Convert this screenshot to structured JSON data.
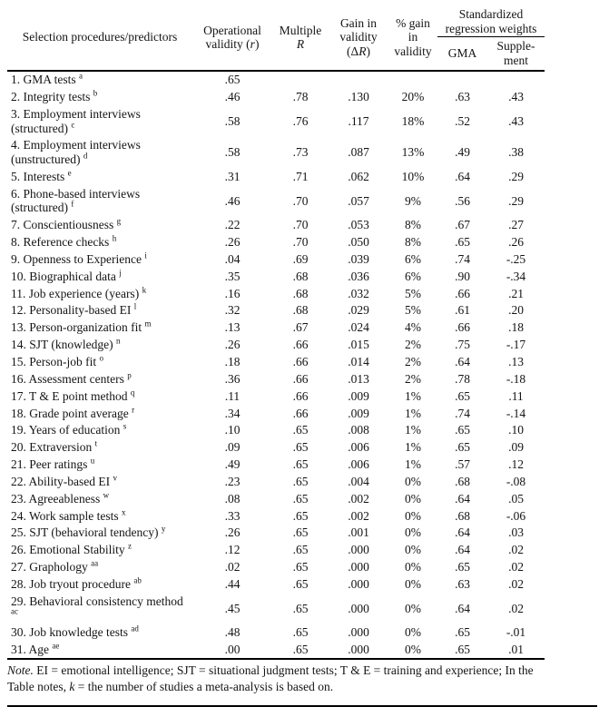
{
  "page": {
    "table": {
      "header": {
        "col1": [
          {
            "t": "Selection procedures/predictors"
          }
        ],
        "col2": [
          {
            "t": "Operational"
          },
          {
            "br": true
          },
          {
            "t": "validity ("
          },
          {
            "t": "r",
            "i": true
          },
          {
            "t": ")"
          }
        ],
        "col3": [
          {
            "t": "Multiple"
          },
          {
            "br": true
          },
          {
            "t": "R",
            "i": true
          }
        ],
        "col4": [
          {
            "t": "Gain in"
          },
          {
            "br": true
          },
          {
            "t": "validity"
          },
          {
            "br": true
          },
          {
            "t": "(Δ"
          },
          {
            "t": "R",
            "i": true
          },
          {
            "t": ")"
          }
        ],
        "col5": [
          {
            "t": "% gain"
          },
          {
            "br": true
          },
          {
            "t": "in"
          },
          {
            "br": true
          },
          {
            "t": "validity"
          }
        ],
        "group": [
          {
            "t": "Standardized"
          },
          {
            "br": true
          },
          {
            "t": "regression weights"
          }
        ],
        "col6": [
          {
            "t": "GMA"
          }
        ],
        "col7": [
          {
            "t": "Supple-"
          },
          {
            "br": true
          },
          {
            "t": "ment"
          }
        ]
      },
      "rows": [
        {
          "label": "1. GMA tests",
          "sup": "a",
          "v": [
            ".65",
            "",
            "",
            "",
            "",
            ""
          ]
        },
        {
          "label": "2. Integrity tests",
          "sup": "b",
          "v": [
            ".46",
            ".78",
            ".130",
            "20%",
            ".63",
            ".43"
          ]
        },
        {
          "label": "3. Employment interviews (structured)",
          "sup": "c",
          "v": [
            ".58",
            ".76",
            ".117",
            "18%",
            ".52",
            ".43"
          ]
        },
        {
          "label": "4. Employment interviews (unstructured)",
          "sup": "d",
          "v": [
            ".58",
            ".73",
            ".087",
            "13%",
            ".49",
            ".38"
          ]
        },
        {
          "label": "5. Interests",
          "sup": "e",
          "v": [
            ".31",
            ".71",
            ".062",
            "10%",
            ".64",
            ".29"
          ]
        },
        {
          "label": "6. Phone-based interviews (structured)",
          "sup": "f",
          "v": [
            ".46",
            ".70",
            ".057",
            "9%",
            ".56",
            ".29"
          ]
        },
        {
          "label": "7. Conscientiousness",
          "sup": "g",
          "v": [
            ".22",
            ".70",
            ".053",
            "8%",
            ".67",
            ".27"
          ]
        },
        {
          "label": "8. Reference checks",
          "sup": "h",
          "v": [
            ".26",
            ".70",
            ".050",
            "8%",
            ".65",
            ".26"
          ]
        },
        {
          "label": "9. Openness to Experience",
          "sup": "i",
          "v": [
            ".04",
            ".69",
            ".039",
            "6%",
            ".74",
            "-.25"
          ]
        },
        {
          "label": "10. Biographical data",
          "sup": "j",
          "v": [
            ".35",
            ".68",
            ".036",
            "6%",
            ".90",
            "-.34"
          ]
        },
        {
          "label": "11. Job experience (years)",
          "sup": "k",
          "v": [
            ".16",
            ".68",
            ".032",
            "5%",
            ".66",
            ".21"
          ]
        },
        {
          "label": "12. Personality-based EI",
          "sup": "l",
          "v": [
            ".32",
            ".68",
            ".029",
            "5%",
            ".61",
            ".20"
          ]
        },
        {
          "label": "13. Person-organization fit",
          "sup": "m",
          "v": [
            ".13",
            ".67",
            ".024",
            "4%",
            ".66",
            ".18"
          ]
        },
        {
          "label": "14. SJT (knowledge)",
          "sup": "n",
          "v": [
            ".26",
            ".66",
            ".015",
            "2%",
            ".75",
            "-.17"
          ]
        },
        {
          "label": "15. Person-job fit",
          "sup": "o",
          "v": [
            ".18",
            ".66",
            ".014",
            "2%",
            ".64",
            ".13"
          ]
        },
        {
          "label": "16. Assessment centers",
          "sup": "p",
          "v": [
            ".36",
            ".66",
            ".013",
            "2%",
            ".78",
            "-.18"
          ]
        },
        {
          "label": "17. T & E point method",
          "sup": "q",
          "v": [
            ".11",
            ".66",
            ".009",
            "1%",
            ".65",
            ".11"
          ]
        },
        {
          "label": "18. Grade point average",
          "sup": "r",
          "v": [
            ".34",
            ".66",
            ".009",
            "1%",
            ".74",
            "-.14"
          ]
        },
        {
          "label": "19. Years of education",
          "sup": "s",
          "v": [
            ".10",
            ".65",
            ".008",
            "1%",
            ".65",
            ".10"
          ]
        },
        {
          "label": "20. Extraversion",
          "sup": "t",
          "v": [
            ".09",
            ".65",
            ".006",
            "1%",
            ".65",
            ".09"
          ]
        },
        {
          "label": "21. Peer ratings",
          "sup": "u",
          "v": [
            ".49",
            ".65",
            ".006",
            "1%",
            ".57",
            ".12"
          ]
        },
        {
          "label": "22. Ability-based EI",
          "sup": "v",
          "v": [
            ".23",
            ".65",
            ".004",
            "0%",
            ".68",
            "-.08"
          ]
        },
        {
          "label": "23. Agreeableness",
          "sup": "w",
          "v": [
            ".08",
            ".65",
            ".002",
            "0%",
            ".64",
            ".05"
          ]
        },
        {
          "label": "24. Work sample tests",
          "sup": "x",
          "v": [
            ".33",
            ".65",
            ".002",
            "0%",
            ".68",
            "-.06"
          ]
        },
        {
          "label": "25. SJT (behavioral tendency)",
          "sup": "y",
          "v": [
            ".26",
            ".65",
            ".001",
            "0%",
            ".64",
            ".03"
          ]
        },
        {
          "label": "26. Emotional Stability",
          "sup": "z",
          "v": [
            ".12",
            ".65",
            ".000",
            "0%",
            ".64",
            ".02"
          ]
        },
        {
          "label": "27. Graphology",
          "sup": "aa",
          "v": [
            ".02",
            ".65",
            ".000",
            "0%",
            ".65",
            ".02"
          ]
        },
        {
          "label": "28. Job tryout procedure",
          "sup": "ab",
          "v": [
            ".44",
            ".65",
            ".000",
            "0%",
            ".63",
            ".02"
          ]
        },
        {
          "label": "29. Behavioral consistency method",
          "sup": "ac",
          "v": [
            ".45",
            ".65",
            ".000",
            "0%",
            ".64",
            ".02"
          ]
        },
        {
          "label": "30. Job knowledge tests",
          "sup": "ad",
          "v": [
            ".48",
            ".65",
            ".000",
            "0%",
            ".65",
            "-.01"
          ]
        },
        {
          "label": "31. Age",
          "sup": "ae",
          "v": [
            ".00",
            ".65",
            ".000",
            "0%",
            ".65",
            ".01"
          ]
        }
      ]
    },
    "note": [
      {
        "t": "Note.",
        "i": true
      },
      {
        "t": " EI = emotional intelligence; SJT = situational judgment tests; T & E = training and experience; In the Table notes, "
      },
      {
        "t": "k",
        "i": true
      },
      {
        "t": " = the number of studies a meta-analysis is based on."
      }
    ]
  }
}
